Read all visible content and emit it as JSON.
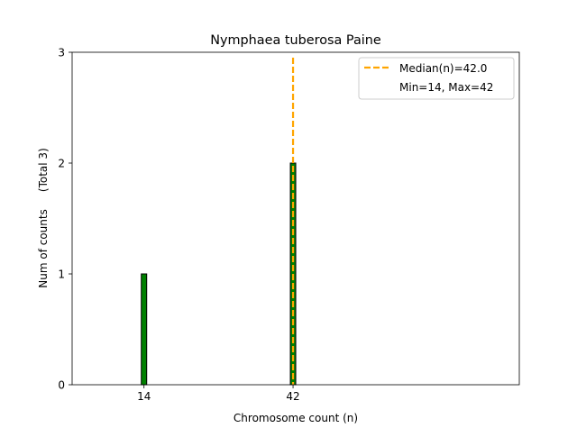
{
  "chart_data": {
    "type": "bar",
    "title": "Nymphaea tuberosa Paine",
    "xlabel": "Chromosome count (n)",
    "ylabel": "Num of counts     (Total 3)",
    "x_ticks": [
      "14",
      "42"
    ],
    "y_ticks": [
      "0",
      "1",
      "2",
      "3"
    ],
    "xlim": [
      0.5,
      84.5
    ],
    "ylim": [
      0,
      3
    ],
    "bars": [
      {
        "x": 14,
        "count": 1
      },
      {
        "x": 42,
        "count": 2
      }
    ],
    "median": 42.0,
    "legend": {
      "placement": "top-right",
      "entries": [
        "Median(n)=42.0",
        "Min=14, Max=42"
      ]
    },
    "colors": {
      "bar_fill": "#008000",
      "bar_edge": "#000000",
      "median_line": "#FFA500"
    }
  }
}
